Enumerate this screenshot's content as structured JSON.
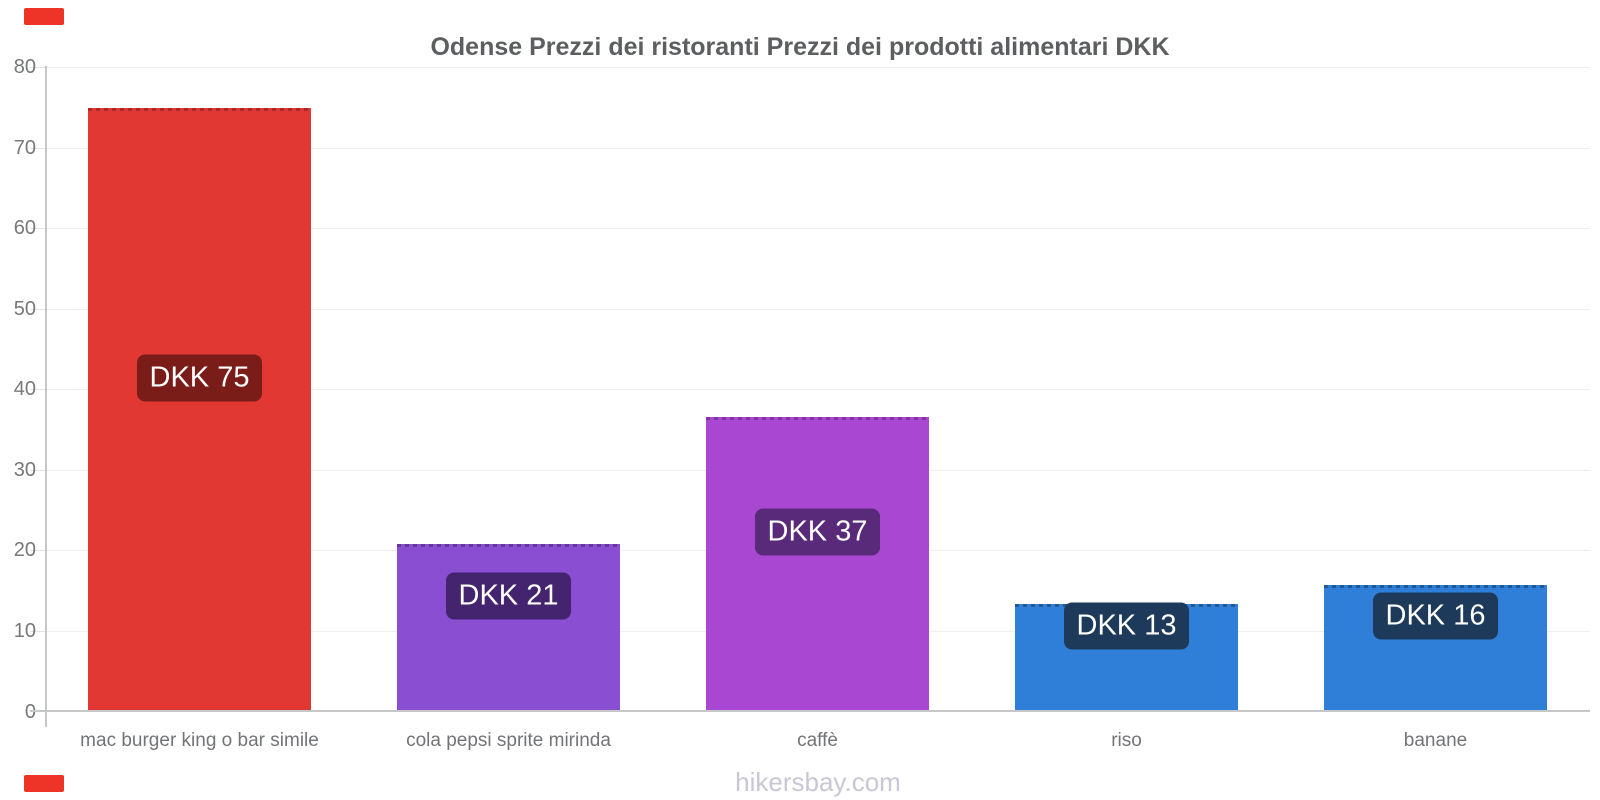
{
  "page": {
    "title": "Odense Prezzi dei ristoranti Prezzi dei prodotti alimentari DKK",
    "footer": "hikersbay.com"
  },
  "decorations": {
    "corner_accent_color": "#ee3428"
  },
  "chart_data": {
    "type": "bar",
    "title": "Odense Prezzi dei ristoranti Prezzi dei prodotti alimentari DKK",
    "currency": "DKK",
    "categories": [
      "mac burger king o bar simile",
      "cola pepsi sprite mirinda",
      "caffè",
      "riso",
      "banane"
    ],
    "values": [
      74.9,
      20.8,
      36.6,
      13.4,
      15.7
    ],
    "value_labels": [
      "DKK 75",
      "DKK 21",
      "DKK 37",
      "DKK 13",
      "DKK 16"
    ],
    "bar_colors": [
      "#e23834",
      "#8a4ed2",
      "#a947d2",
      "#2f7fd8",
      "#2f7fd8"
    ],
    "badge_colors": [
      "#7a1d18",
      "#44246e",
      "#5a2a7a",
      "#1d3a5a",
      "#1d3a5a"
    ],
    "y_ticks": [
      0,
      10,
      20,
      30,
      40,
      50,
      60,
      70,
      80
    ],
    "ylim": [
      0,
      80
    ],
    "xlabel": "",
    "ylabel": "",
    "grid": "horizontal",
    "legend": "none"
  }
}
